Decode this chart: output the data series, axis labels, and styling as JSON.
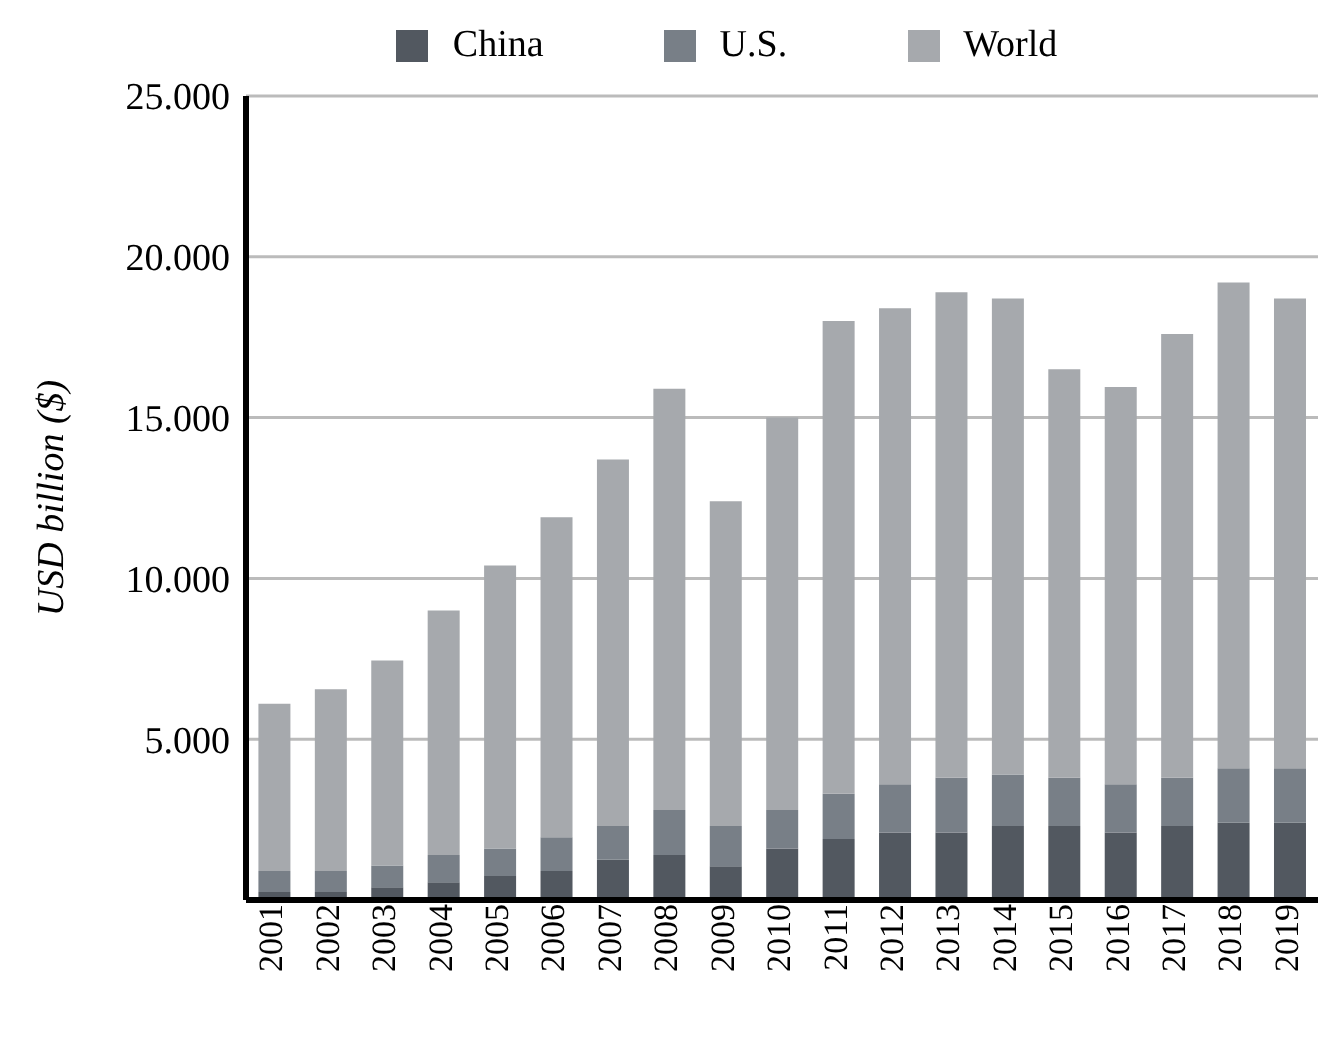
{
  "chart_data": {
    "type": "bar",
    "ylabel": "USD billion ($)",
    "stacked": true,
    "categories": [
      "2001",
      "2002",
      "2003",
      "2004",
      "2005",
      "2006",
      "2007",
      "2008",
      "2009",
      "2010",
      "2011",
      "2012",
      "2013",
      "2014",
      "2015",
      "2016",
      "2017",
      "2018",
      "2019"
    ],
    "series": [
      {
        "name": "China",
        "color": "#525860",
        "values": [
          0.25,
          0.25,
          0.4,
          0.55,
          0.75,
          0.9,
          1.25,
          1.4,
          1.05,
          1.6,
          1.9,
          2.1,
          2.1,
          2.3,
          2.3,
          2.1,
          2.3,
          2.4,
          2.4
        ]
      },
      {
        "name": "U.S.",
        "color": "#787f87",
        "values": [
          0.65,
          0.65,
          0.67,
          0.85,
          0.85,
          1.05,
          1.05,
          1.4,
          1.25,
          1.2,
          1.4,
          1.5,
          1.7,
          1.6,
          1.5,
          1.5,
          1.5,
          1.7,
          1.7
        ]
      },
      {
        "name": "World",
        "color": "#a6a9ad",
        "values": [
          5.2,
          5.65,
          6.38,
          7.6,
          8.8,
          9.95,
          11.4,
          13.1,
          10.1,
          12.2,
          14.7,
          14.8,
          15.1,
          14.8,
          12.7,
          12.35,
          13.8,
          15.1,
          14.6
        ]
      }
    ],
    "ylim": [
      0,
      25
    ],
    "yticks": [
      {
        "value": 0,
        "label": null
      },
      {
        "value": 5,
        "label": "5.000"
      },
      {
        "value": 10,
        "label": "10.000"
      },
      {
        "value": 15,
        "label": "15.000"
      },
      {
        "value": 20,
        "label": "20.000"
      },
      {
        "value": 25,
        "label": "25.000"
      }
    ],
    "grid": "y",
    "legend": "top"
  }
}
